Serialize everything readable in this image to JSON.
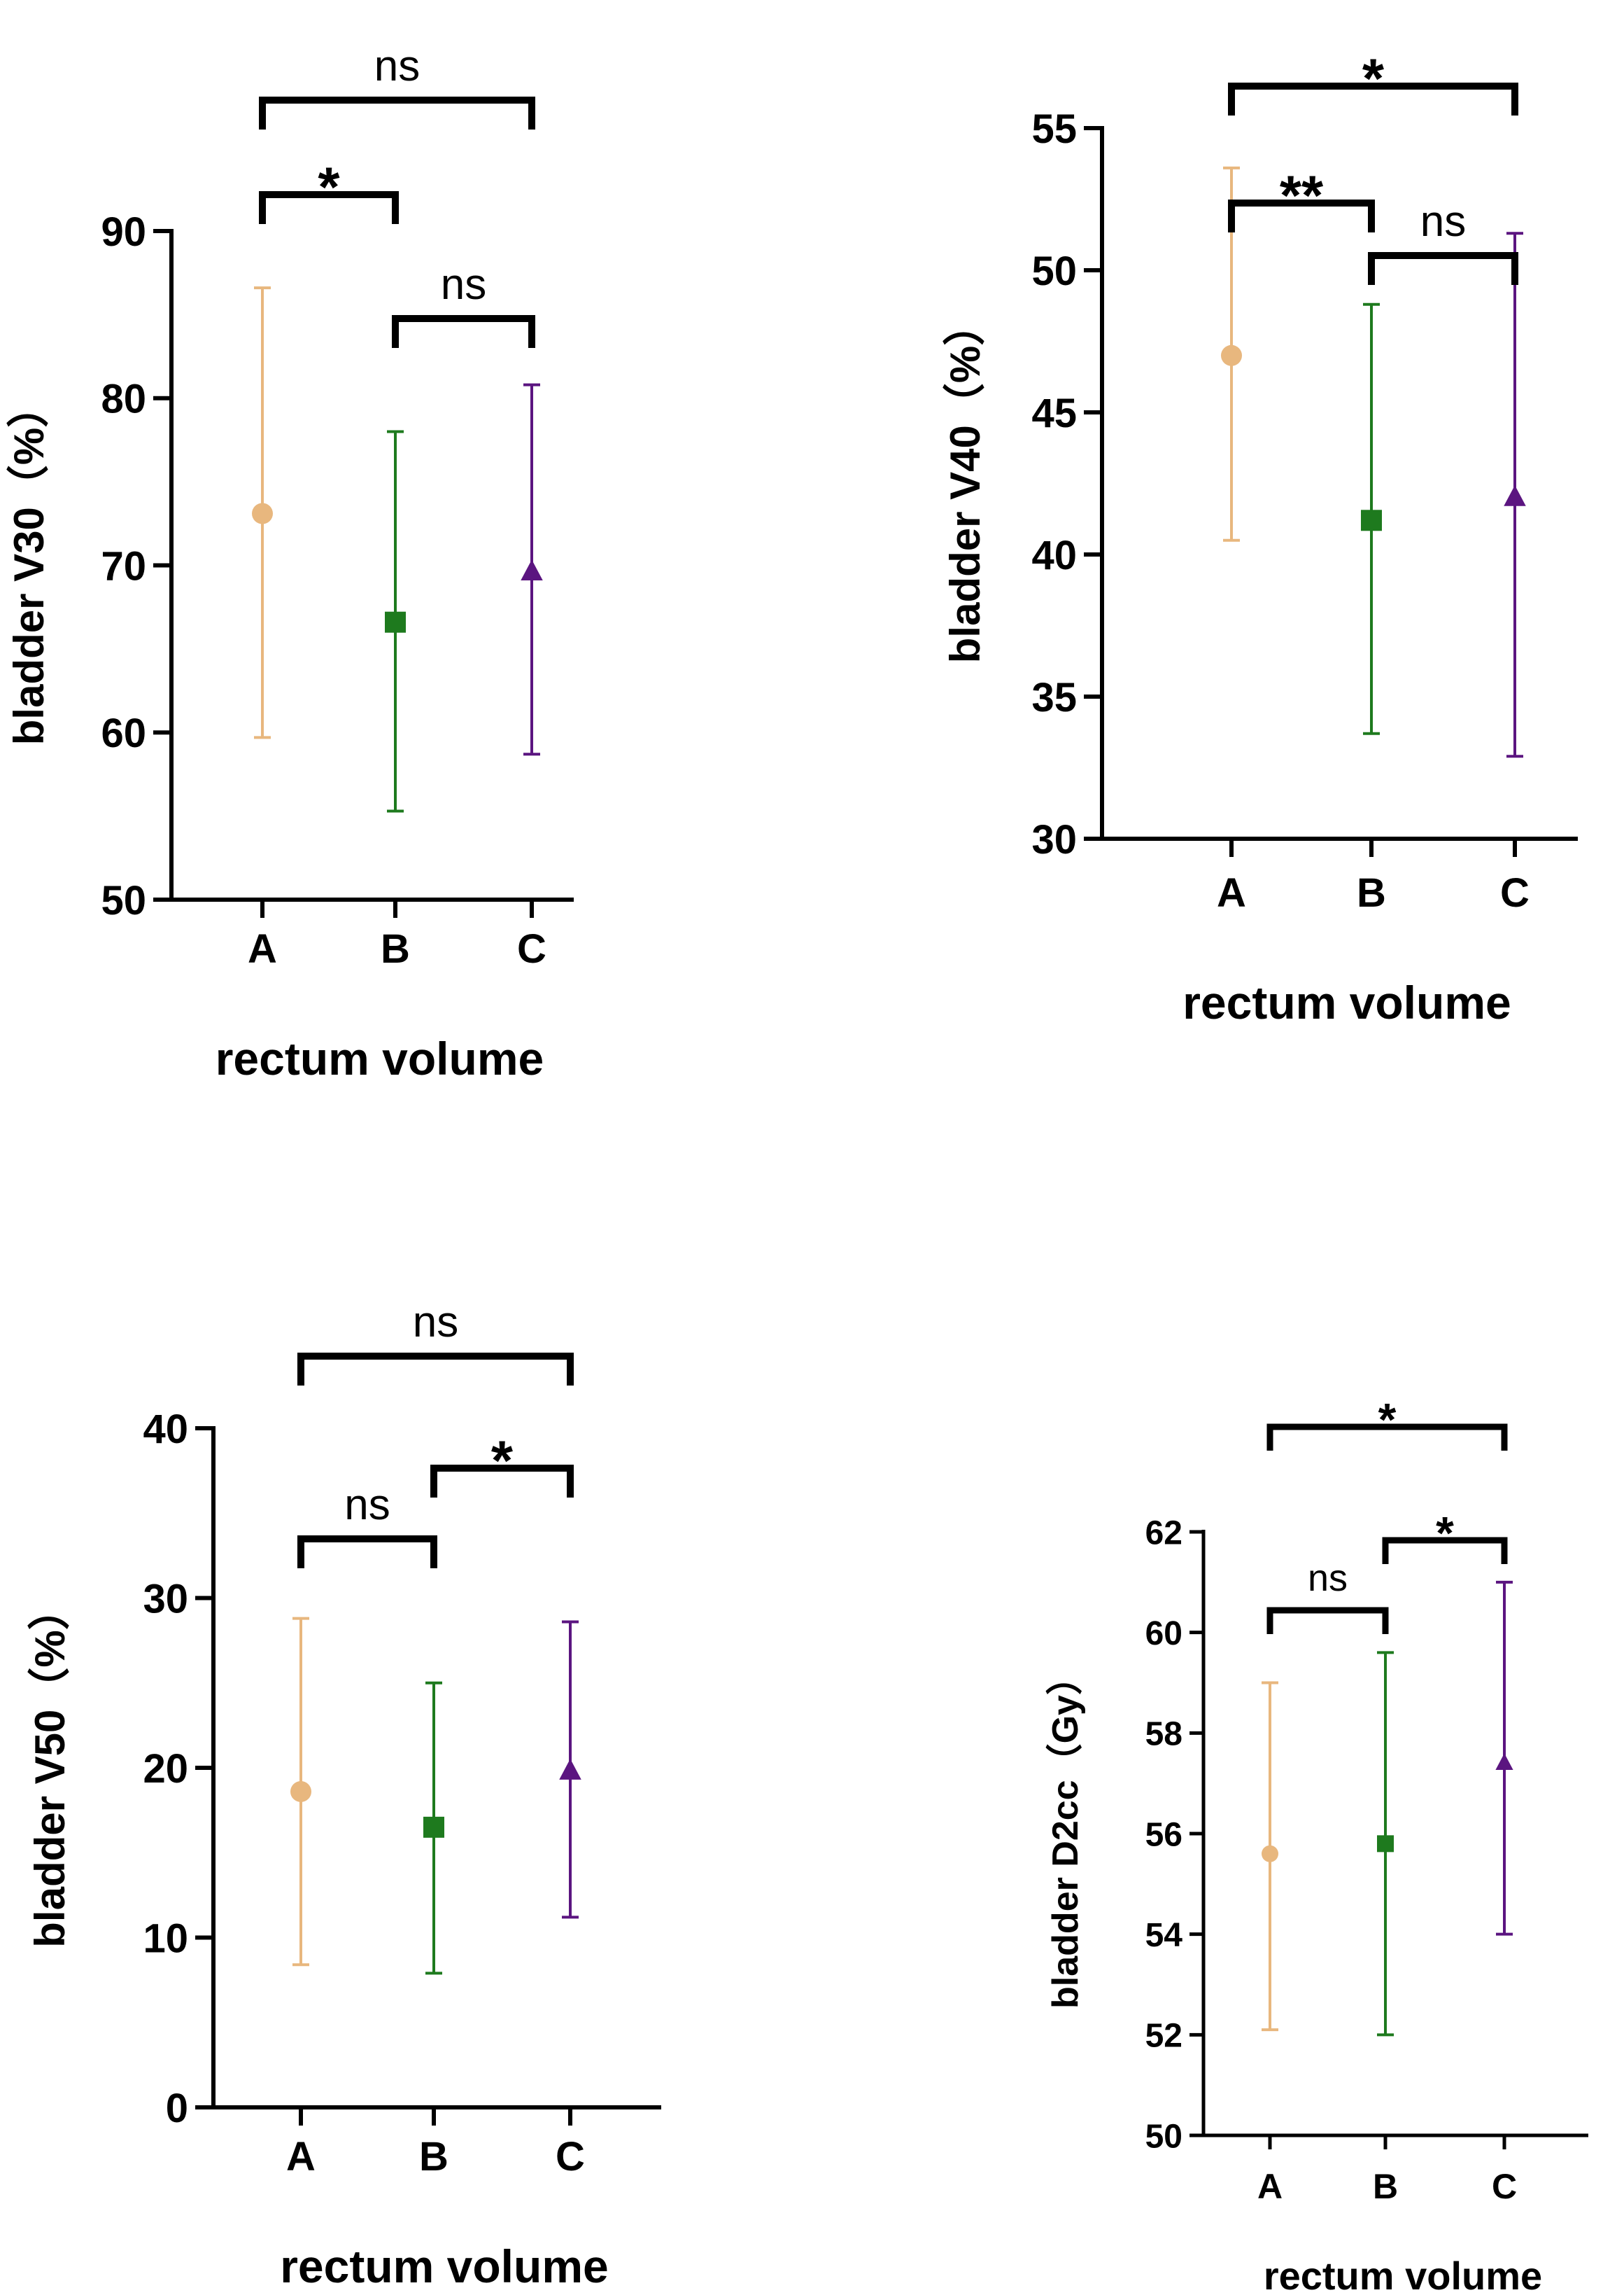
{
  "colors": {
    "A": "#e8b77e",
    "B": "#1e7a1e",
    "C": "#5b1580",
    "axis": "#000000"
  },
  "chart_data": [
    {
      "type": "scatter",
      "title": "",
      "xlabel": "rectum volume",
      "ylabel": "bladder V30（%）",
      "categories": [
        "A",
        "B",
        "C"
      ],
      "ylim": [
        50,
        90
      ],
      "yticks": [
        50,
        60,
        70,
        80,
        90
      ],
      "series": [
        {
          "name": "A",
          "marker": "circle",
          "value": 73.1,
          "low": 59.7,
          "high": 86.6
        },
        {
          "name": "B",
          "marker": "square",
          "value": 66.6,
          "low": 55.3,
          "high": 78.0
        },
        {
          "name": "C",
          "marker": "triangle",
          "value": 69.6,
          "low": 58.7,
          "high": 80.8
        }
      ],
      "significance": [
        {
          "from": "A",
          "to": "C",
          "label": "ns"
        },
        {
          "from": "A",
          "to": "B",
          "label": "*"
        },
        {
          "from": "B",
          "to": "C",
          "label": "ns"
        }
      ]
    },
    {
      "type": "scatter",
      "title": "",
      "xlabel": "rectum volume",
      "ylabel": "bladder V40（%）",
      "categories": [
        "A",
        "B",
        "C"
      ],
      "ylim": [
        30,
        55
      ],
      "yticks": [
        30,
        35,
        40,
        45,
        50,
        55
      ],
      "series": [
        {
          "name": "A",
          "marker": "circle",
          "value": 47.0,
          "low": 40.5,
          "high": 53.6
        },
        {
          "name": "B",
          "marker": "square",
          "value": 41.2,
          "low": 33.7,
          "high": 48.8
        },
        {
          "name": "C",
          "marker": "triangle",
          "value": 42.0,
          "low": 32.9,
          "high": 51.3
        }
      ],
      "significance": [
        {
          "from": "A",
          "to": "C",
          "label": "*"
        },
        {
          "from": "A",
          "to": "B",
          "label": "**"
        },
        {
          "from": "B",
          "to": "C",
          "label": "ns"
        }
      ]
    },
    {
      "type": "scatter",
      "title": "",
      "xlabel": "rectum volume",
      "ylabel": "bladder V50（%）",
      "categories": [
        "A",
        "B",
        "C"
      ],
      "ylim": [
        0,
        40
      ],
      "yticks": [
        0,
        10,
        20,
        30,
        40
      ],
      "series": [
        {
          "name": "A",
          "marker": "circle",
          "value": 18.6,
          "low": 8.4,
          "high": 28.8
        },
        {
          "name": "B",
          "marker": "square",
          "value": 16.5,
          "low": 7.9,
          "high": 25.0
        },
        {
          "name": "C",
          "marker": "triangle",
          "value": 19.8,
          "low": 11.2,
          "high": 28.6
        }
      ],
      "significance": [
        {
          "from": "A",
          "to": "C",
          "label": "ns"
        },
        {
          "from": "B",
          "to": "C",
          "label": "*"
        },
        {
          "from": "A",
          "to": "B",
          "label": "ns"
        }
      ]
    },
    {
      "type": "scatter",
      "title": "",
      "xlabel": "rectum volume",
      "ylabel": "bladder D2cc（Gy）",
      "categories": [
        "A",
        "B",
        "C"
      ],
      "ylim": [
        50,
        62
      ],
      "yticks": [
        50,
        52,
        54,
        56,
        58,
        60,
        62
      ],
      "series": [
        {
          "name": "A",
          "marker": "circle",
          "value": 55.6,
          "low": 52.1,
          "high": 59.0
        },
        {
          "name": "B",
          "marker": "square",
          "value": 55.8,
          "low": 52.0,
          "high": 59.6
        },
        {
          "name": "C",
          "marker": "triangle",
          "value": 57.4,
          "low": 54.0,
          "high": 61.0
        }
      ],
      "significance": [
        {
          "from": "A",
          "to": "C",
          "label": "*"
        },
        {
          "from": "B",
          "to": "C",
          "label": "*"
        },
        {
          "from": "A",
          "to": "B",
          "label": "ns"
        }
      ]
    }
  ]
}
